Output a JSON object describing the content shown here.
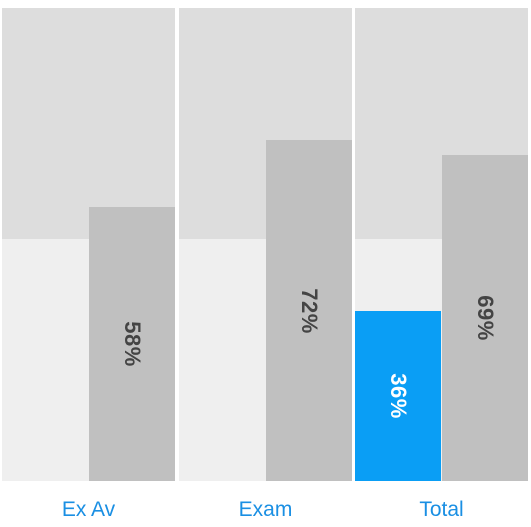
{
  "chart_data": {
    "type": "bar",
    "categories": [
      "Ex Av",
      "Exam",
      "Total"
    ],
    "series": [
      {
        "values": [
          null,
          null,
          36
        ],
        "labels": [
          "",
          "",
          "36%"
        ]
      },
      {
        "values": [
          58,
          72,
          69
        ],
        "labels": [
          "58%",
          "72%",
          "69%"
        ]
      }
    ],
    "ylim": [
      0,
      100
    ],
    "colors": {
      "highlight": "#0a9ef5",
      "bar": "#c0c0c0",
      "background": "#efefef",
      "upper_band": "#dddddd",
      "label": "#1a8fe3"
    }
  }
}
